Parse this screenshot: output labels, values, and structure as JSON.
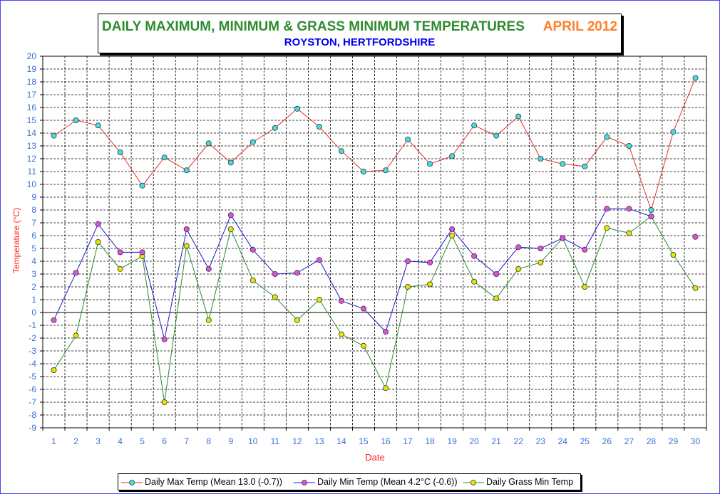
{
  "title": {
    "main": "DAILY MAXIMUM, MINIMUM & GRASS MINIMUM TEMPERATURES",
    "period": "APRIL 2012",
    "subtitle": "ROYSTON, HERTFORDSHIRE"
  },
  "colors": {
    "title_green": "#2e8b2e",
    "period_orange": "#ff7f27",
    "subtitle_blue": "#0000ee",
    "tick_label_blue": "#3a6fd8",
    "axis_label_red": "#ff2020",
    "max_line": "#e03030",
    "max_marker": "#40e0e0",
    "min_line": "#1a1acc",
    "min_marker": "#e050e0",
    "grass_line": "#2e8b2e",
    "grass_marker": "#e6e600"
  },
  "chart_data": {
    "type": "line",
    "title": "DAILY MAXIMUM, MINIMUM & GRASS MINIMUM TEMPERATURES",
    "xlabel": "Date",
    "ylabel": "Temperature (°C)",
    "ylim": [
      -9,
      20
    ],
    "grid": true,
    "legend_position": "bottom",
    "x": [
      1,
      2,
      3,
      4,
      5,
      6,
      7,
      8,
      9,
      10,
      11,
      12,
      13,
      14,
      15,
      16,
      17,
      18,
      19,
      20,
      21,
      22,
      23,
      24,
      25,
      26,
      27,
      28,
      29,
      30
    ],
    "series": [
      {
        "name": "Daily Max Temp (Mean 13.0 (-0.7))",
        "values": [
          13.8,
          15.0,
          14.6,
          12.5,
          9.9,
          12.1,
          11.1,
          13.2,
          11.7,
          13.3,
          14.4,
          15.9,
          14.5,
          12.6,
          11.0,
          11.1,
          13.5,
          11.6,
          12.2,
          14.6,
          13.8,
          15.3,
          12.0,
          11.6,
          11.4,
          13.7,
          13.0,
          8.0,
          14.1,
          18.3
        ]
      },
      {
        "name": "Daily Min Temp (Mean 4.2°C (-0.6))",
        "values": [
          -0.6,
          3.1,
          6.9,
          4.7,
          4.7,
          -2.1,
          6.5,
          3.4,
          7.6,
          4.9,
          3.0,
          3.1,
          4.1,
          0.9,
          0.3,
          -1.5,
          4.0,
          3.9,
          6.5,
          4.4,
          3.0,
          5.1,
          5.0,
          5.8,
          4.9,
          8.1,
          8.1,
          7.5,
          null,
          5.9
        ]
      },
      {
        "name": "Daily Grass Min Temp",
        "values": [
          -4.5,
          -1.8,
          5.5,
          3.4,
          4.4,
          -7.0,
          5.2,
          -0.6,
          6.5,
          2.5,
          1.2,
          -0.6,
          1.0,
          -1.7,
          -2.6,
          -5.9,
          2.0,
          2.2,
          6.0,
          2.4,
          1.1,
          3.4,
          3.9,
          5.8,
          2.0,
          6.6,
          6.2,
          7.5,
          4.5,
          1.9
        ]
      }
    ]
  }
}
